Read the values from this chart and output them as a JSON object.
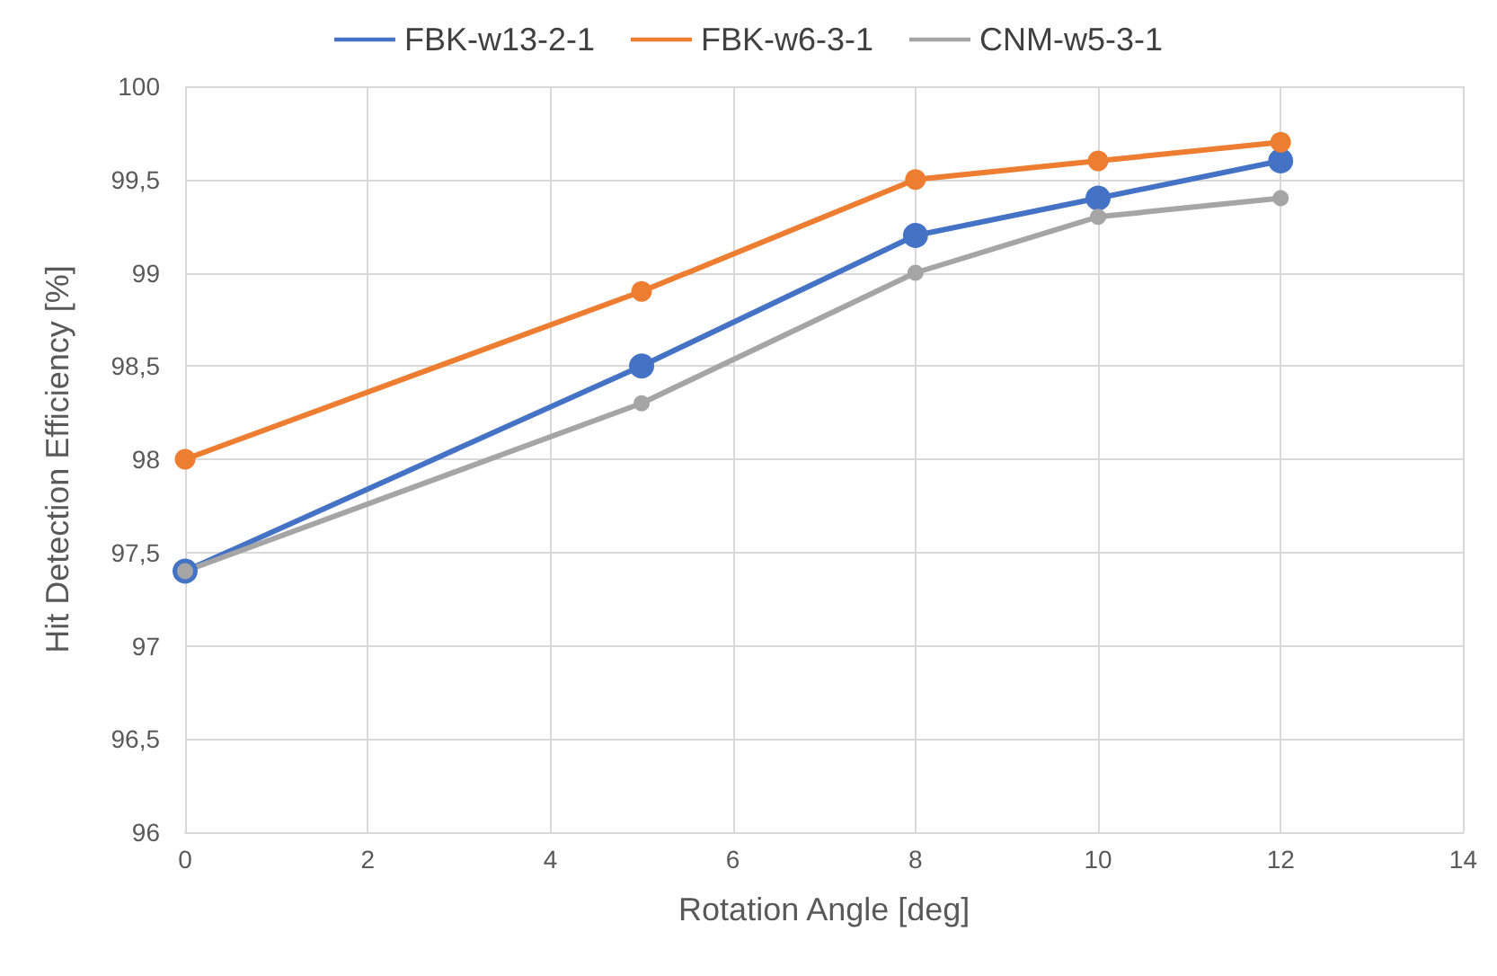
{
  "chart_data": {
    "type": "line",
    "xlabel": "Rotation Angle [deg]",
    "ylabel": "Hit Detection Efficiency [%]",
    "x": [
      0,
      5,
      8,
      10,
      12
    ],
    "series": [
      {
        "name": "FBK-w13-2-1",
        "color": "#4472c4",
        "values": [
          97.4,
          98.5,
          99.2,
          99.4,
          99.6
        ]
      },
      {
        "name": "FBK-w6-3-1",
        "color": "#ed7d31",
        "values": [
          98.0,
          98.9,
          99.5,
          99.6,
          99.7
        ]
      },
      {
        "name": "CNM-w5-3-1",
        "color": "#a5a5a5",
        "values": [
          97.4,
          98.3,
          99.0,
          99.3,
          99.4
        ]
      }
    ],
    "xlim": [
      0,
      14
    ],
    "xticks": [
      0,
      2,
      4,
      6,
      8,
      10,
      12,
      14
    ],
    "ylim": [
      96,
      100
    ],
    "yticks": [
      96,
      {
        "value": 96.5,
        "label": "96,5"
      },
      97,
      {
        "value": 97.5,
        "label": "97,5"
      },
      98,
      {
        "value": 98.5,
        "label": "98,5"
      },
      99,
      {
        "value": 99.5,
        "label": "99,5"
      },
      100
    ],
    "grid": true,
    "legend": "top",
    "marker": "circle",
    "line_style": "solid"
  }
}
